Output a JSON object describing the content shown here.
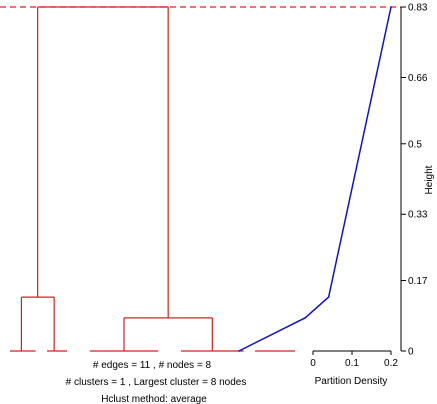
{
  "colors": {
    "dendrogram": "#d42020",
    "density_line": "#1010d8",
    "height_line": "#e02020",
    "axis": "#000000"
  },
  "stats": {
    "line1": "# edges =  11 ,    # nodes =  8",
    "line2": "# clusters =  1 ,   Largest cluster =  8  nodes",
    "line3": "Hclust method:  average"
  },
  "chart_data": [
    {
      "type": "dendrogram",
      "title": "",
      "ylabel": "Height",
      "ylim": [
        0,
        0.83
      ],
      "yticks": [
        "0",
        "0.17",
        "0.33",
        "0.5",
        "0.66",
        "0.83"
      ],
      "cut_height": 0.83,
      "leaf_segments": [
        {
          "x0": 0.0,
          "x1": 0.09
        },
        {
          "x0": 0.13,
          "x1": 0.2
        },
        {
          "x0": 0.28,
          "x1": 0.52
        },
        {
          "x0": 0.6,
          "x1": 0.82
        },
        {
          "x0": 0.86,
          "x1": 1.0
        }
      ],
      "merges": [
        {
          "left_x": 0.04,
          "right_x": 0.155,
          "left_h": 0.0,
          "right_h": 0.0,
          "height": 0.13
        },
        {
          "left_x": 0.4,
          "right_x": 0.71,
          "left_h": 0.0,
          "right_h": 0.0,
          "height": 0.08
        },
        {
          "left_x": 0.097,
          "right_x": 0.555,
          "left_h": 0.13,
          "right_h": 0.08,
          "height": 0.83
        }
      ]
    },
    {
      "type": "line",
      "xlabel": "Partition Density",
      "xlim": [
        -0.19,
        0.2
      ],
      "xticks": [
        "0",
        "0.1",
        "0.2"
      ],
      "points": [
        {
          "x": -0.19,
          "y": 0.0
        },
        {
          "x": -0.02,
          "y": 0.08
        },
        {
          "x": 0.04,
          "y": 0.13
        },
        {
          "x": 0.2,
          "y": 0.83
        }
      ]
    }
  ]
}
